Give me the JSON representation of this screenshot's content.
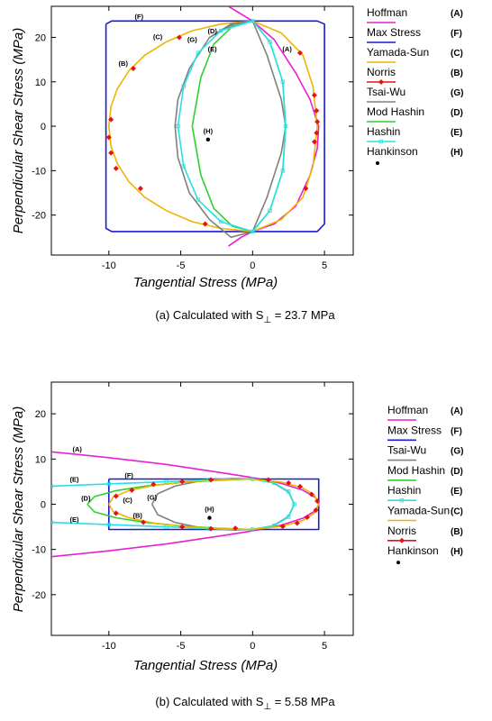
{
  "chart_data": [
    {
      "type": "line",
      "xlabel": "Tangential Stress (MPa)",
      "ylabel": "Perpendicular Shear Stress (MPa)",
      "xlim": [
        -14,
        7
      ],
      "ylim": [
        -29,
        27
      ],
      "xticks": [
        -10,
        -5,
        0,
        5
      ],
      "yticks": [
        -20,
        -10,
        0,
        10,
        20
      ],
      "xtick_labels": [
        "-10",
        "-5",
        "0",
        "5"
      ],
      "ytick_labels": [
        "-20",
        "-10",
        "0",
        "10",
        "20"
      ],
      "caption_prefix": "(a) Calculated with S",
      "caption_sub": "⊥",
      "caption_suffix": " = 23.7 MPa",
      "legend_position": "right",
      "series": [
        {
          "name": "Hoffman",
          "code": "(A)",
          "color": "#e81fd0",
          "marker": "none",
          "x": [
            -1.68,
            0.0,
            1.5,
            3.0,
            4.0,
            4.6,
            4.5,
            4.0,
            3.0,
            1.5,
            0.0,
            -0.8,
            -1.68
          ],
          "y": [
            27.0,
            23.7,
            19.5,
            12.0,
            6.0,
            0.0,
            -5.0,
            -11.0,
            -18.0,
            -22.0,
            -23.7,
            -25.0,
            -27.0
          ]
        },
        {
          "name": "Max Stress",
          "code": "(F)",
          "color": "#1a1ad6",
          "marker": "none",
          "x": [
            -10.2,
            -9.8,
            4.5,
            5.0,
            5.0,
            4.5,
            -9.8,
            -10.2,
            -10.2
          ],
          "y": [
            23.0,
            23.7,
            23.7,
            23.0,
            -22.0,
            -23.7,
            -23.7,
            -23.0,
            23.0
          ]
        },
        {
          "name": "Yamada-Sun",
          "code": "(C)",
          "color": "#f0b400",
          "marker": "none",
          "x": [
            -10.0,
            -9.85,
            -9.4,
            -8.6,
            -7.5,
            -6.0,
            -4.2,
            -2.2,
            0.0,
            2.0,
            3.5,
            4.2,
            4.5,
            4.2,
            3.5,
            2.0,
            0.0,
            -2.2,
            -4.2,
            -6.0,
            -7.5,
            -8.6,
            -9.4,
            -9.85,
            -10.0
          ],
          "y": [
            0.0,
            4.5,
            8.5,
            12.5,
            16.0,
            19.0,
            21.5,
            23.0,
            23.7,
            21.0,
            16.0,
            9.0,
            0.0,
            -9.0,
            -16.0,
            -21.0,
            -23.7,
            -23.0,
            -21.5,
            -19.0,
            -16.0,
            -12.5,
            -8.5,
            -4.5,
            0.0
          ]
        },
        {
          "name": "Norris",
          "code": "(B)",
          "color": "#e81010",
          "marker": "diamond",
          "x": [
            -10.0,
            -9.85,
            -8.3,
            -5.1,
            3.3,
            4.3,
            4.45,
            4.5,
            4.45,
            4.3,
            3.7,
            -3.3,
            -7.8,
            -9.5,
            -9.85
          ],
          "y": [
            -2.5,
            1.5,
            13.0,
            20.0,
            16.5,
            7.0,
            3.5,
            1.0,
            -1.5,
            -3.5,
            -14.0,
            -22.0,
            -14.0,
            -9.5,
            -6.0
          ]
        },
        {
          "name": "Tsai-Wu",
          "code": "(G)",
          "color": "#808080",
          "marker": "none",
          "x": [
            0.0,
            -1.5,
            -3.0,
            -4.4,
            -5.2,
            -5.4,
            -5.2,
            -4.4,
            -3.0,
            -1.5,
            0.0,
            1.0,
            2.0,
            2.3,
            2.0,
            1.0,
            0.0,
            -1.3,
            -3.0
          ],
          "y": [
            23.7,
            23.0,
            20.0,
            13.0,
            6.0,
            0.0,
            -7.0,
            -15.0,
            -21.0,
            -25.0,
            -23.7,
            -16.0,
            -6.0,
            0.0,
            6.0,
            16.0,
            23.7,
            23.0,
            20.0
          ]
        },
        {
          "name": "Mod Hashin",
          "code": "(D)",
          "color": "#2fcf2f",
          "marker": "none",
          "x": [
            -4.2,
            -3.6,
            -2.7,
            -1.4,
            0.0,
            1.2,
            2.1,
            2.3,
            2.1,
            1.2,
            0.0,
            -1.4,
            -2.7,
            -3.6,
            -4.2
          ],
          "y": [
            0.0,
            11.0,
            18.5,
            22.5,
            23.7,
            19.0,
            10.0,
            0.0,
            -10.0,
            -19.0,
            -23.7,
            -22.5,
            -18.5,
            -11.0,
            0.0
          ]
        },
        {
          "name": "Hashin",
          "code": "(E)",
          "color": "#29e0e6",
          "marker": "square",
          "x": [
            -5.2,
            -4.8,
            -3.8,
            -2.2,
            0.0,
            1.2,
            2.1,
            2.3,
            2.1,
            1.2,
            0.0,
            -2.2,
            -3.8,
            -4.8,
            -5.2
          ],
          "y": [
            0.0,
            9.0,
            16.5,
            21.5,
            23.7,
            19.0,
            10.0,
            0.0,
            -10.0,
            -19.0,
            -23.7,
            -21.5,
            -16.5,
            -9.0,
            0.0
          ]
        },
        {
          "name": "Hankinson",
          "code": "(H)",
          "color": "#000000",
          "marker": "dot",
          "x": [
            -3.1
          ],
          "y": [
            -3.0
          ]
        }
      ],
      "annotations": [
        {
          "text": "(F)",
          "x": -7.9,
          "y": 24.8
        },
        {
          "text": "(C)",
          "x": -6.6,
          "y": 20.2
        },
        {
          "text": "(B)",
          "x": -9.0,
          "y": 14.2
        },
        {
          "text": "(D)",
          "x": -2.8,
          "y": 21.5
        },
        {
          "text": "(G)",
          "x": -4.2,
          "y": 19.6
        },
        {
          "text": "(E)",
          "x": -2.8,
          "y": 17.5
        },
        {
          "text": "(A)",
          "x": 2.4,
          "y": 17.5
        },
        {
          "text": "(H)",
          "x": -3.1,
          "y": -1.0
        }
      ]
    },
    {
      "type": "line",
      "xlabel": "Tangential Stress (MPa)",
      "ylabel": "Perpendicular Shear Stress (MPa)",
      "xlim": [
        -14,
        7
      ],
      "ylim": [
        -29,
        27
      ],
      "xticks": [
        -10,
        -5,
        0,
        5
      ],
      "yticks": [
        -20,
        -10,
        0,
        10,
        20
      ],
      "xtick_labels": [
        "-10",
        "-5",
        "0",
        "5"
      ],
      "ytick_labels": [
        "-20",
        "-10",
        "0",
        "10",
        "20"
      ],
      "caption_prefix": "(b) Calculated with S",
      "caption_sub": "⊥",
      "caption_suffix": " = 5.58 MPa",
      "legend_position": "right",
      "series": [
        {
          "name": "Hoffman",
          "code": "(A)",
          "color": "#e81fd0",
          "marker": "none",
          "x": [
            -14.0,
            -10.0,
            -6.0,
            -2.0,
            0.0,
            2.0,
            3.5,
            4.4,
            4.6,
            4.4,
            3.5,
            2.0,
            0.0,
            -2.0,
            -6.0,
            -10.0,
            -14.0
          ],
          "y": [
            11.6,
            10.3,
            8.8,
            6.9,
            5.9,
            4.6,
            3.1,
            1.4,
            0.0,
            -1.4,
            -3.1,
            -4.6,
            -5.9,
            -6.9,
            -8.8,
            -10.3,
            -11.6
          ]
        },
        {
          "name": "Max Stress",
          "code": "(F)",
          "color": "#1a1ad6",
          "marker": "none",
          "x": [
            -10.0,
            4.6,
            4.6,
            -10.0,
            -10.0
          ],
          "y": [
            5.58,
            5.58,
            -5.58,
            -5.58,
            5.58
          ]
        },
        {
          "name": "Tsai-Wu",
          "code": "(G)",
          "color": "#808080",
          "marker": "none",
          "x": [
            -7.0,
            -6.6,
            -5.4,
            -3.6,
            -1.4,
            0.0,
            1.4,
            2.5,
            2.9,
            2.5,
            1.4,
            0.0,
            -1.4,
            -3.6,
            -5.4,
            -6.6,
            -7.0
          ],
          "y": [
            0.0,
            2.3,
            4.0,
            5.2,
            5.7,
            5.6,
            4.8,
            2.7,
            0.0,
            -2.7,
            -4.8,
            -5.6,
            -5.7,
            -5.2,
            -4.0,
            -2.3,
            0.0
          ]
        },
        {
          "name": "Mod Hashin",
          "code": "(D)",
          "color": "#2fcf2f",
          "marker": "none",
          "x": [
            -11.5,
            -11.0,
            -9.5,
            -7.5,
            -5.0,
            -2.5,
            0.0,
            1.5,
            2.5,
            2.9,
            2.5,
            1.5,
            0.0,
            -2.5,
            -5.0,
            -7.5,
            -9.5,
            -11.0,
            -11.5
          ],
          "y": [
            0.0,
            1.7,
            3.0,
            4.0,
            4.8,
            5.3,
            5.58,
            4.7,
            2.8,
            0.0,
            -2.8,
            -4.7,
            -5.58,
            -5.3,
            -4.8,
            -4.0,
            -3.0,
            -1.7,
            0.0
          ]
        },
        {
          "name": "Hashin",
          "code": "(E)",
          "color": "#29e0e6",
          "marker": "square",
          "x": [
            -14.0,
            -10.0,
            -6.0,
            -3.0,
            0.0,
            1.5,
            2.5,
            2.9,
            2.5,
            1.5,
            0.0,
            -3.0,
            -6.0,
            -10.0,
            -14.0
          ],
          "y": [
            4.0,
            4.5,
            5.0,
            5.4,
            5.58,
            4.7,
            2.8,
            0.0,
            -2.8,
            -4.7,
            -5.58,
            -5.4,
            -5.0,
            -4.5,
            -4.0
          ]
        },
        {
          "name": "Yamada-Sun",
          "code": "(C)",
          "color": "#f0b400",
          "marker": "none",
          "x": [
            -10.0,
            -9.7,
            -8.6,
            -6.8,
            -4.5,
            -2.0,
            0.0,
            2.0,
            3.5,
            4.3,
            4.6,
            4.3,
            3.5,
            2.0,
            0.0,
            -2.0,
            -4.5,
            -6.8,
            -8.6,
            -9.7,
            -10.0
          ],
          "y": [
            0.0,
            1.6,
            3.0,
            4.2,
            5.0,
            5.45,
            5.58,
            4.9,
            3.6,
            2.0,
            0.0,
            -2.0,
            -3.6,
            -4.9,
            -5.58,
            -5.45,
            -5.0,
            -4.2,
            -3.0,
            -1.6,
            0.0
          ]
        },
        {
          "name": "Norris",
          "code": "(B)",
          "color": "#e81010",
          "marker": "diamond",
          "x": [
            -9.5,
            -8.4,
            -6.9,
            -4.9,
            -2.9,
            1.1,
            2.5,
            3.3,
            4.1,
            4.5,
            4.4,
            3.8,
            3.1,
            2.1,
            -1.2,
            -2.9,
            -4.9,
            -7.6,
            -9.5
          ],
          "y": [
            1.8,
            3.1,
            4.4,
            5.0,
            5.4,
            5.4,
            4.7,
            3.9,
            2.2,
            0.7,
            -1.3,
            -2.9,
            -4.2,
            -4.9,
            -5.3,
            -5.4,
            -5.0,
            -4.0,
            -2.0
          ]
        },
        {
          "name": "Hankinson",
          "code": "(H)",
          "color": "#000000",
          "marker": "dot",
          "x": [
            -3.0
          ],
          "y": [
            -3.0
          ]
        }
      ],
      "annotations": [
        {
          "text": "(A)",
          "x": -12.2,
          "y": 12.3
        },
        {
          "text": "(F)",
          "x": -8.6,
          "y": 6.5
        },
        {
          "text": "(E)",
          "x": -12.4,
          "y": 5.6
        },
        {
          "text": "(D)",
          "x": -11.6,
          "y": 1.4
        },
        {
          "text": "(C)",
          "x": -8.7,
          "y": 1.0
        },
        {
          "text": "(G)",
          "x": -7.0,
          "y": 1.6
        },
        {
          "text": "(B)",
          "x": -8.0,
          "y": -2.4
        },
        {
          "text": "(E)",
          "x": -12.4,
          "y": -3.3
        },
        {
          "text": "(H)",
          "x": -3.0,
          "y": -1.0
        }
      ]
    }
  ]
}
